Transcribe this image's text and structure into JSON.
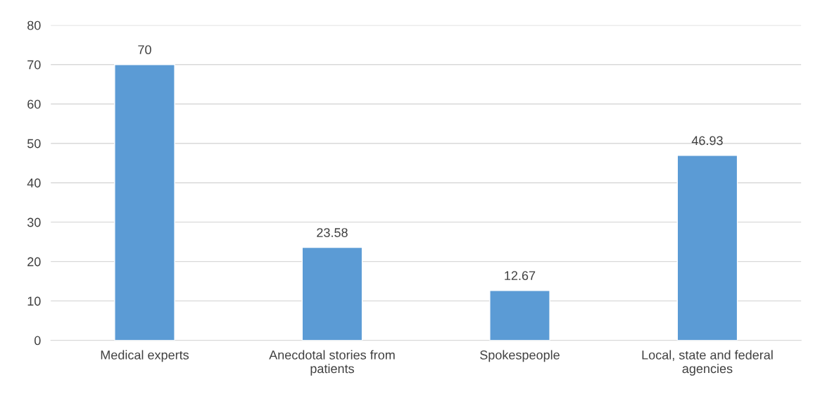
{
  "chart_data": {
    "type": "bar",
    "categories": [
      "Medical experts",
      "Anecdotal stories from\npatients",
      "Spokespeople",
      "Local, state and federal\nagencies"
    ],
    "values": [
      70,
      23.58,
      12.67,
      46.93
    ],
    "color": "#5b9bd5",
    "ylim": [
      0,
      80
    ],
    "yticks": [
      0,
      10,
      20,
      30,
      40,
      50,
      60,
      70,
      80
    ],
    "grid": "y",
    "data_labels": true
  }
}
